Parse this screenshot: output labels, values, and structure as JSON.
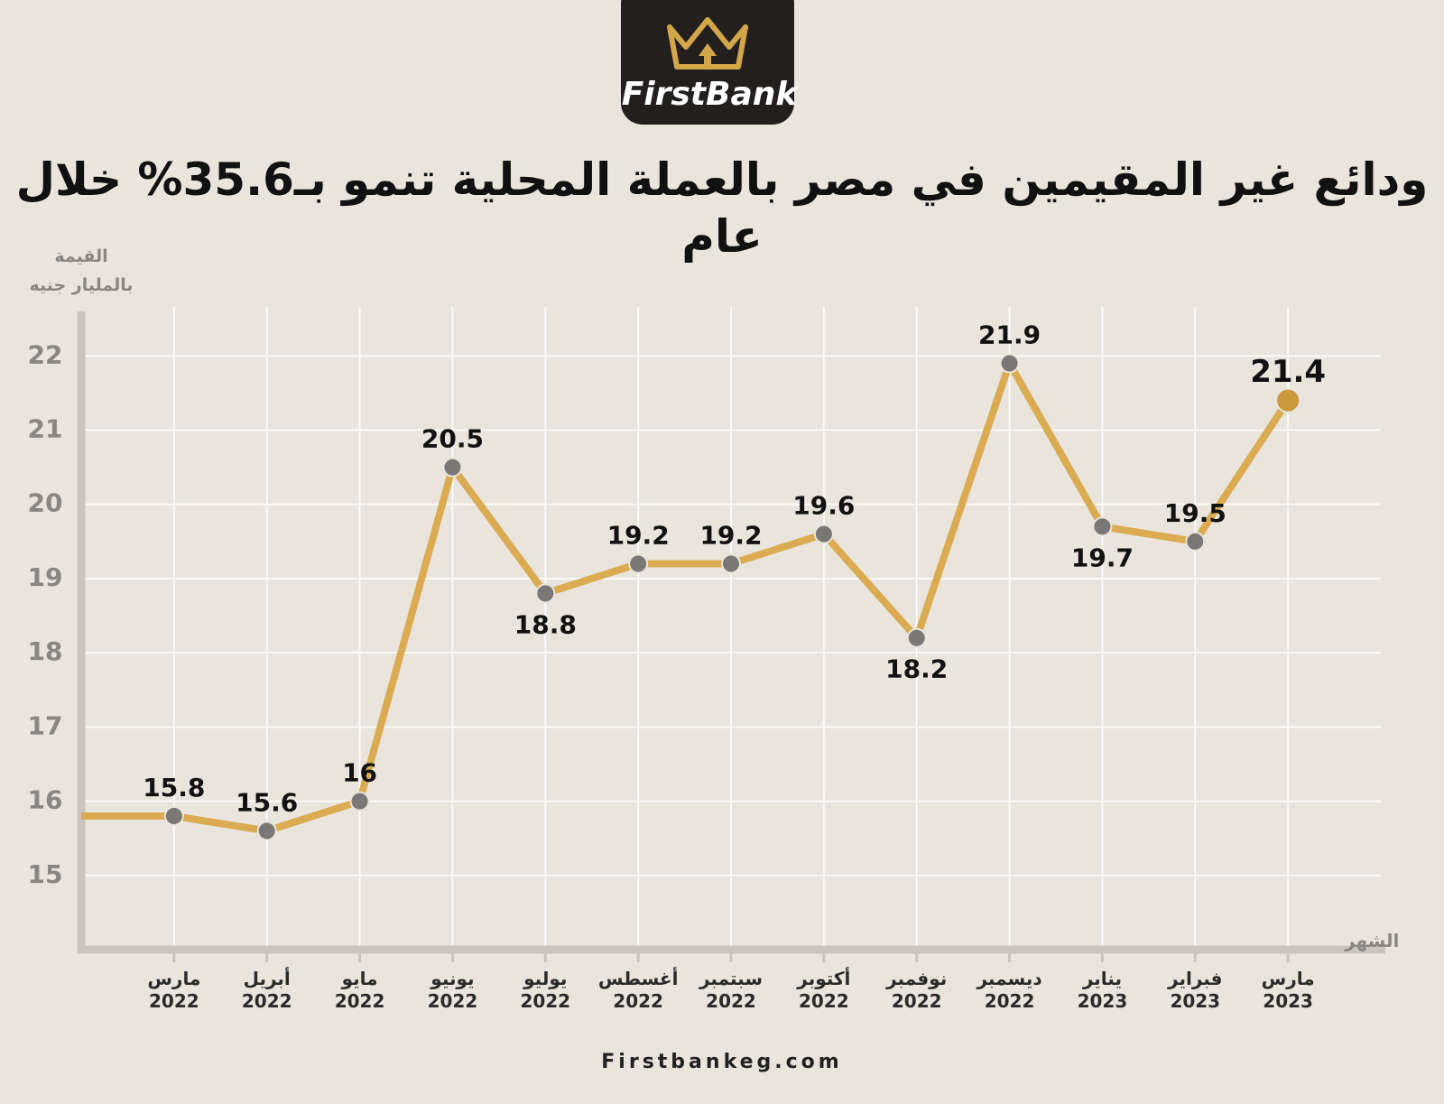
{
  "brand": "FirstBank",
  "footer": "Firstbankeg.com",
  "chart_data": {
    "type": "line",
    "title": "ودائع غير المقيمين في مصر بالعملة المحلية تنمو بـ35.6% خلال عام",
    "y_label": "القيمة\nبالمليار جنيه",
    "x_label": "الشهر",
    "categories": [
      "مارس\n2022",
      "أبريل\n2022",
      "مايو\n2022",
      "يونيو\n2022",
      "يوليو\n2022",
      "أغسطس\n2022",
      "سبتمبر\n2022",
      "أكتوبر\n2022",
      "نوفمبر\n2022",
      "ديسمبر\n2022",
      "يناير\n2023",
      "فبراير\n2023",
      "مارس\n2023"
    ],
    "series": [
      {
        "color": "#dbab52",
        "values": [
          15.8,
          15.6,
          16,
          20.5,
          18.8,
          19.2,
          19.2,
          19.6,
          18.2,
          21.9,
          19.7,
          19.5,
          21.4
        ]
      }
    ],
    "ylim": [
      14,
      22.6
    ],
    "yticks": [
      15,
      16,
      17,
      18,
      19,
      20,
      21,
      22
    ],
    "grid": true
  }
}
